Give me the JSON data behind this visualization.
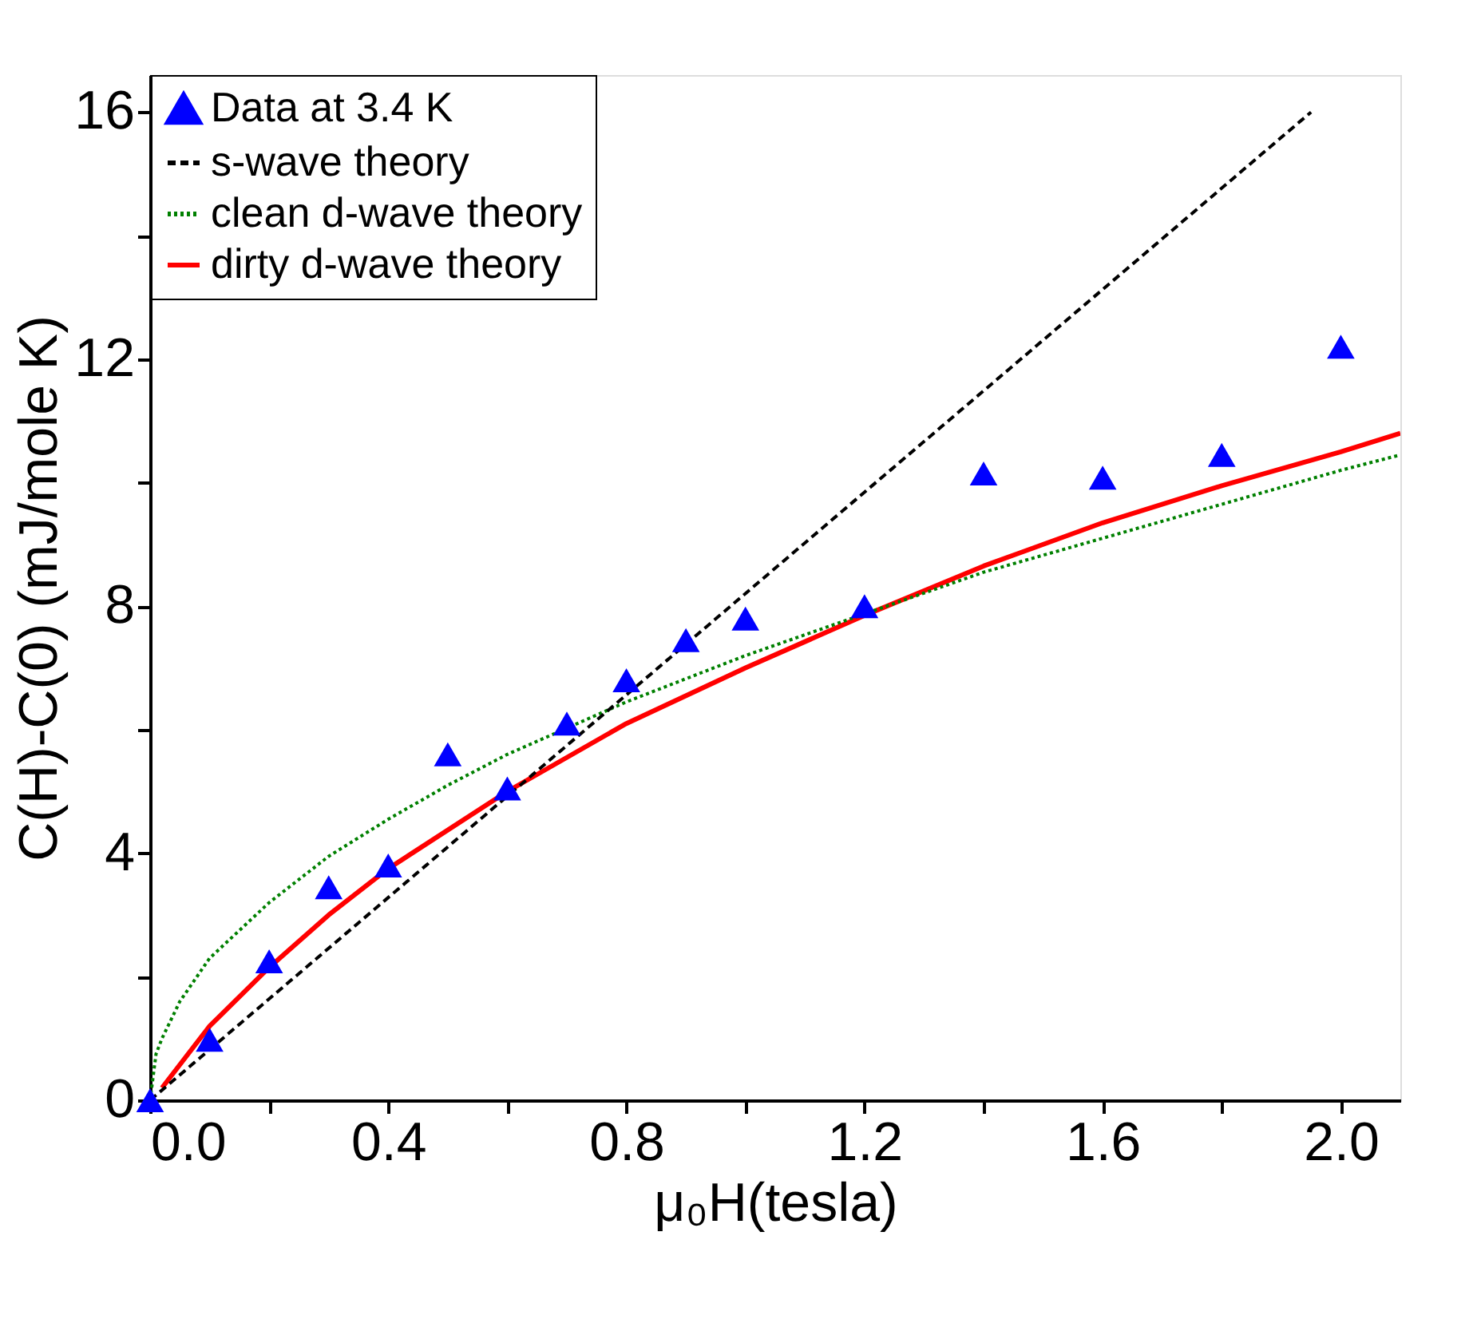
{
  "chart_data": {
    "type": "line",
    "xlabel": "μ₀H(tesla)",
    "ylabel": "C(H)-C(0) (mJ/mole K)",
    "xlim": [
      0,
      2.1
    ],
    "ylim": [
      0,
      16.6
    ],
    "xticks": [
      {
        "value": 0,
        "label": "0.0"
      },
      {
        "value": 0.2,
        "label": null
      },
      {
        "value": 0.4,
        "label": "0.4"
      },
      {
        "value": 0.6,
        "label": null
      },
      {
        "value": 0.8,
        "label": "0.8"
      },
      {
        "value": 1.0,
        "label": null
      },
      {
        "value": 1.2,
        "label": "1.2"
      },
      {
        "value": 1.4,
        "label": null
      },
      {
        "value": 1.6,
        "label": "1.6"
      },
      {
        "value": 1.8,
        "label": null
      },
      {
        "value": 2.0,
        "label": "2.0"
      }
    ],
    "yticks": [
      0,
      {
        "value": 2,
        "label": null
      },
      4,
      {
        "value": 6,
        "label": null
      },
      8,
      {
        "value": 10,
        "label": null
      },
      12,
      {
        "value": 14,
        "label": null
      },
      16
    ],
    "grid": false,
    "legend": "top left",
    "series": [
      {
        "name": "Data at 3.4 K",
        "type": "scatter",
        "marker": "triangle",
        "color": "#0000ff",
        "x": [
          0,
          0.1,
          0.2,
          0.3,
          0.4,
          0.5,
          0.6,
          0.7,
          0.8,
          0.9,
          1.0,
          1.2,
          1.4,
          1.6,
          1.8,
          2.0
        ],
        "values": [
          0,
          0.98,
          2.25,
          3.45,
          3.8,
          5.6,
          5.05,
          6.1,
          6.8,
          7.45,
          7.8,
          8.0,
          10.15,
          10.08,
          10.45,
          12.2
        ]
      },
      {
        "name": "s-wave theory",
        "line_style": "dashed",
        "color": "#000000",
        "x": [
          0,
          1.95
        ],
        "values": [
          0,
          16
        ]
      },
      {
        "name": "clean d-wave theory",
        "line_style": "dotted",
        "color": "#008000",
        "x": [
          0,
          0.01,
          0.02,
          0.05,
          0.1,
          0.2,
          0.3,
          0.4,
          0.5,
          0.6,
          0.8,
          1.0,
          1.4,
          1.6,
          1.8,
          2.0,
          2.1
        ],
        "values": [
          0,
          0.75,
          1.0,
          1.6,
          2.3,
          3.2,
          3.95,
          4.55,
          5.1,
          5.6,
          6.45,
          7.2,
          8.55,
          9.1,
          9.65,
          10.2,
          10.45
        ]
      },
      {
        "name": "dirty d-wave theory",
        "line_style": "solid",
        "color": "#ff0000",
        "x": [
          0.02,
          0.1,
          0.2,
          0.3,
          0.4,
          0.6,
          0.8,
          1.0,
          1.2,
          1.4,
          1.6,
          1.8,
          2.0,
          2.1
        ],
        "values": [
          0.2,
          1.2,
          2.15,
          3.0,
          3.75,
          5.0,
          6.1,
          7.0,
          7.85,
          8.65,
          9.35,
          9.95,
          10.5,
          10.8
        ]
      }
    ]
  }
}
